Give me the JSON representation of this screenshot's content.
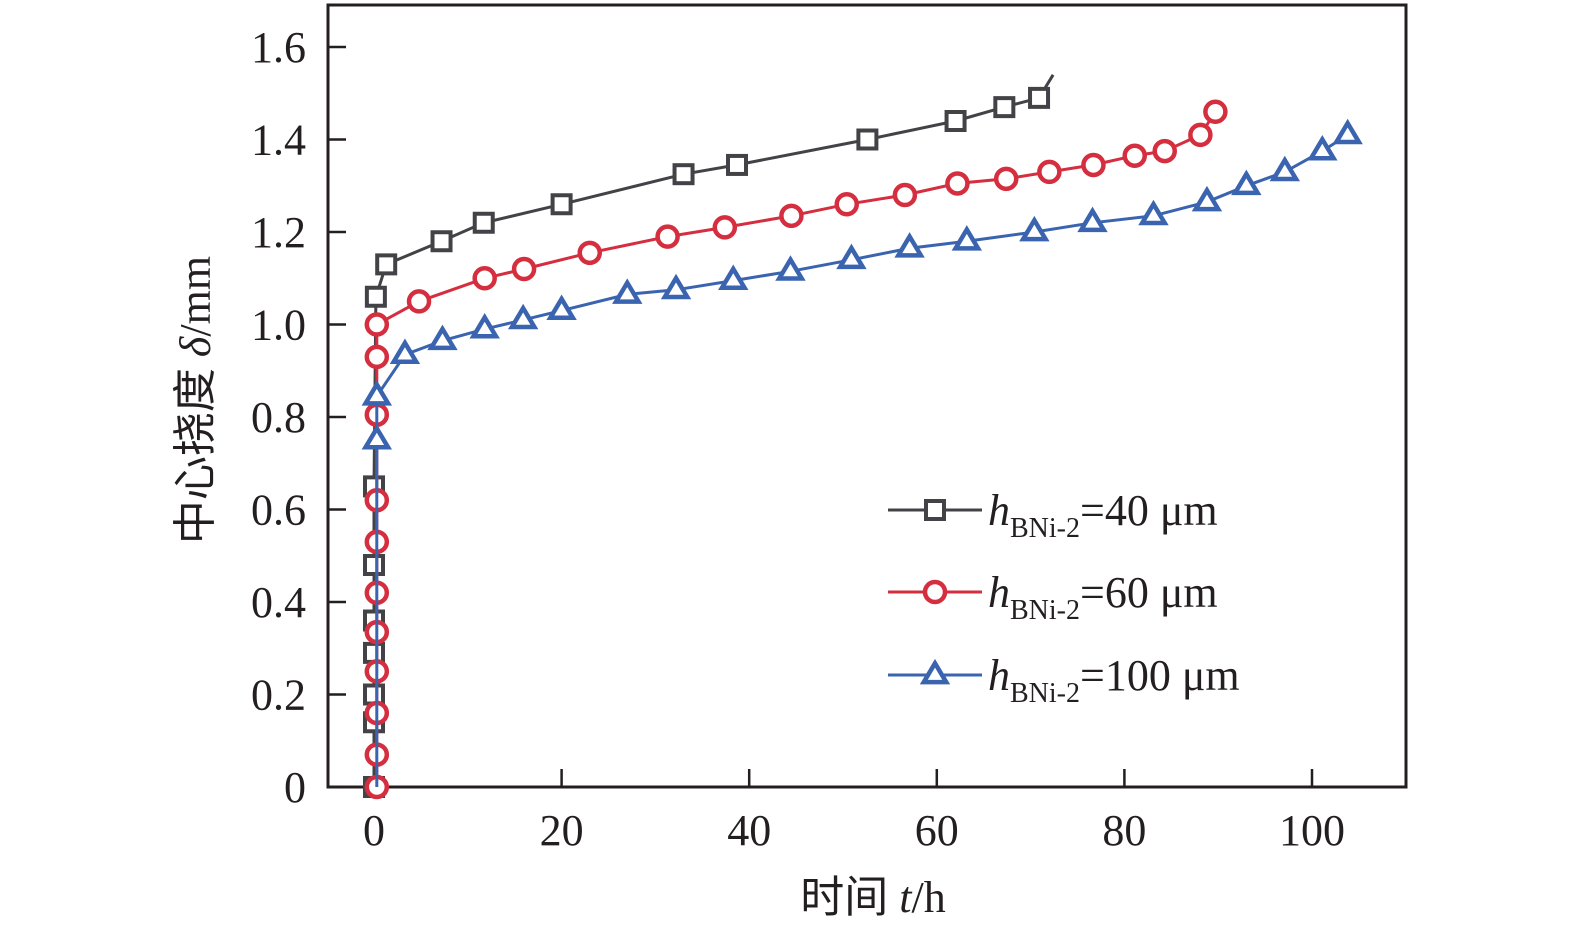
{
  "chart_data": {
    "type": "line",
    "title": "",
    "xlabel": {
      "prefix": "时间 ",
      "var": "t",
      "unit": "/h"
    },
    "ylabel": {
      "prefix": "中心挠度 ",
      "var": "δ",
      "unit": "/mm"
    },
    "xlim": [
      -8,
      110
    ],
    "ylim": [
      0,
      1.7
    ],
    "xticks": [
      0,
      20,
      40,
      60,
      80,
      100
    ],
    "xtick_labels": [
      "0",
      "20",
      "40",
      "60",
      "80",
      "100"
    ],
    "yticks": [
      0,
      0.2,
      0.4,
      0.6,
      0.8,
      1.0,
      1.2,
      1.4,
      1.6
    ],
    "ytick_labels": [
      "0",
      "0.2",
      "0.4",
      "0.6",
      "0.8",
      "1.0",
      "1.2",
      "1.4",
      "1.6"
    ],
    "grid": false,
    "legend_position": "lower-right",
    "series": [
      {
        "name": "hBNi-2=40 μm",
        "label_var": "h",
        "label_sub": "BNi-2",
        "label_rest": "=40 μm",
        "color": "#434347",
        "marker": "square",
        "line_end": [
          72.4,
          1.54
        ],
        "points": [
          [
            0,
            0
          ],
          [
            0,
            0.14
          ],
          [
            0,
            0.2
          ],
          [
            0,
            0.29
          ],
          [
            0,
            0.36
          ],
          [
            0,
            0.48
          ],
          [
            0,
            0.65
          ],
          [
            0.2,
            1.06
          ],
          [
            1.3,
            1.13
          ],
          [
            7.2,
            1.18
          ],
          [
            11.7,
            1.22
          ],
          [
            20,
            1.26
          ],
          [
            33,
            1.325
          ],
          [
            38.7,
            1.345
          ],
          [
            52.6,
            1.4
          ],
          [
            62,
            1.44
          ],
          [
            67.2,
            1.47
          ],
          [
            70.9,
            1.49
          ]
        ]
      },
      {
        "name": "hBNi-2=60 μm",
        "label_var": "h",
        "label_sub": "BNi-2",
        "label_rest": "=60 μm",
        "color": "#d42e3f",
        "marker": "circle",
        "line_end": null,
        "points": [
          [
            0.3,
            0
          ],
          [
            0.3,
            0.07
          ],
          [
            0.3,
            0.16
          ],
          [
            0.3,
            0.25
          ],
          [
            0.3,
            0.335
          ],
          [
            0.3,
            0.42
          ],
          [
            0.3,
            0.53
          ],
          [
            0.3,
            0.62
          ],
          [
            0.3,
            0.805
          ],
          [
            0.3,
            0.93
          ],
          [
            0.3,
            1.0
          ],
          [
            4.8,
            1.05
          ],
          [
            11.8,
            1.1
          ],
          [
            16,
            1.12
          ],
          [
            23,
            1.155
          ],
          [
            31.3,
            1.19
          ],
          [
            37.4,
            1.21
          ],
          [
            44.5,
            1.235
          ],
          [
            50.4,
            1.26
          ],
          [
            56.6,
            1.28
          ],
          [
            62.2,
            1.305
          ],
          [
            67.4,
            1.315
          ],
          [
            72,
            1.33
          ],
          [
            76.7,
            1.345
          ],
          [
            81.1,
            1.365
          ],
          [
            84.3,
            1.375
          ],
          [
            88.1,
            1.41
          ],
          [
            89.7,
            1.46
          ]
        ]
      },
      {
        "name": "hBNi-2=100 μm",
        "label_var": "h",
        "label_sub": "BNi-2",
        "label_rest": "=100 μm",
        "color": "#3a64b0",
        "marker": "triangle",
        "line_end": null,
        "line_start": [
          0.3,
          0
        ],
        "points": [
          [
            0.3,
            0.75
          ],
          [
            0.3,
            0.845
          ],
          [
            3.3,
            0.935
          ],
          [
            7.3,
            0.965
          ],
          [
            11.8,
            0.99
          ],
          [
            15.9,
            1.01
          ],
          [
            20,
            1.03
          ],
          [
            27,
            1.065
          ],
          [
            32.2,
            1.075
          ],
          [
            38.3,
            1.095
          ],
          [
            44.4,
            1.115
          ],
          [
            50.9,
            1.14
          ],
          [
            57.1,
            1.165
          ],
          [
            63.2,
            1.18
          ],
          [
            70.4,
            1.2
          ],
          [
            76.6,
            1.22
          ],
          [
            83.1,
            1.235
          ],
          [
            88.8,
            1.265
          ],
          [
            93,
            1.3
          ],
          [
            97.1,
            1.33
          ],
          [
            101.1,
            1.375
          ],
          [
            103.8,
            1.41
          ]
        ]
      }
    ]
  }
}
